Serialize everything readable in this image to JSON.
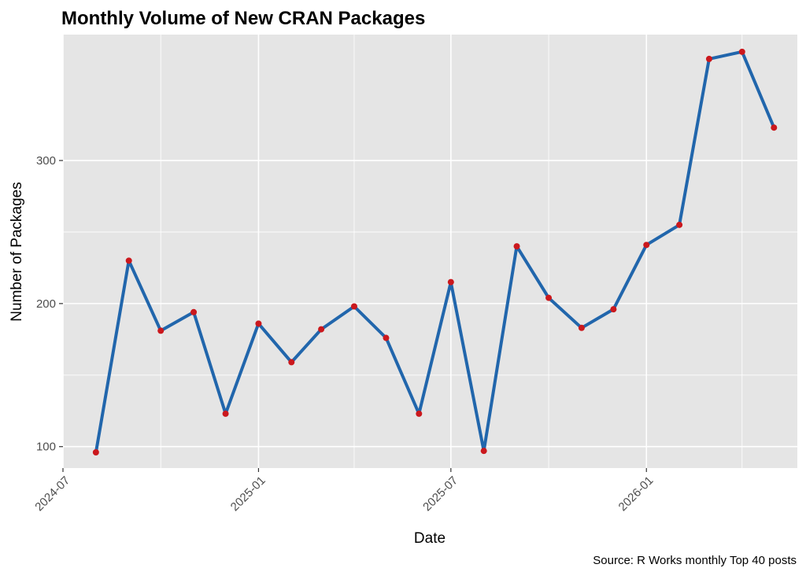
{
  "chart_data": {
    "type": "line",
    "title": "Monthly Volume of New CRAN Packages",
    "xlabel": "Date",
    "ylabel": "Number of Packages",
    "caption": "Source: R Works monthly Top 40 posts",
    "x_ticks": [
      "2024-07",
      "2025-01",
      "2025-07",
      "2026-01"
    ],
    "y_ticks": [
      100,
      200,
      300
    ],
    "xlim": [
      "2024-07-01",
      "2026-05-23"
    ],
    "ylim": [
      85,
      388
    ],
    "grid": true,
    "legend": "none",
    "series": [
      {
        "x": [
          "2024-08-01",
          "2024-09-01",
          "2024-10-01",
          "2024-11-01",
          "2024-12-01",
          "2025-01-01",
          "2025-02-01",
          "2025-03-01",
          "2025-04-01",
          "2025-05-01",
          "2025-06-01",
          "2025-07-01",
          "2025-08-01",
          "2025-09-01",
          "2025-10-01",
          "2025-11-01",
          "2025-12-01",
          "2026-01-01",
          "2026-02-01",
          "2026-03-01",
          "2026-04-01",
          "2026-05-01"
        ],
        "values": [
          96,
          230,
          181,
          194,
          123,
          186,
          159,
          182,
          198,
          176,
          123,
          215,
          97,
          240,
          204,
          183,
          196,
          241,
          255,
          371,
          376,
          323
        ]
      }
    ],
    "colors": {
      "line": "#2166ac",
      "point": "#cb181d",
      "panel": "#e5e5e5",
      "grid": "#ffffff"
    }
  }
}
